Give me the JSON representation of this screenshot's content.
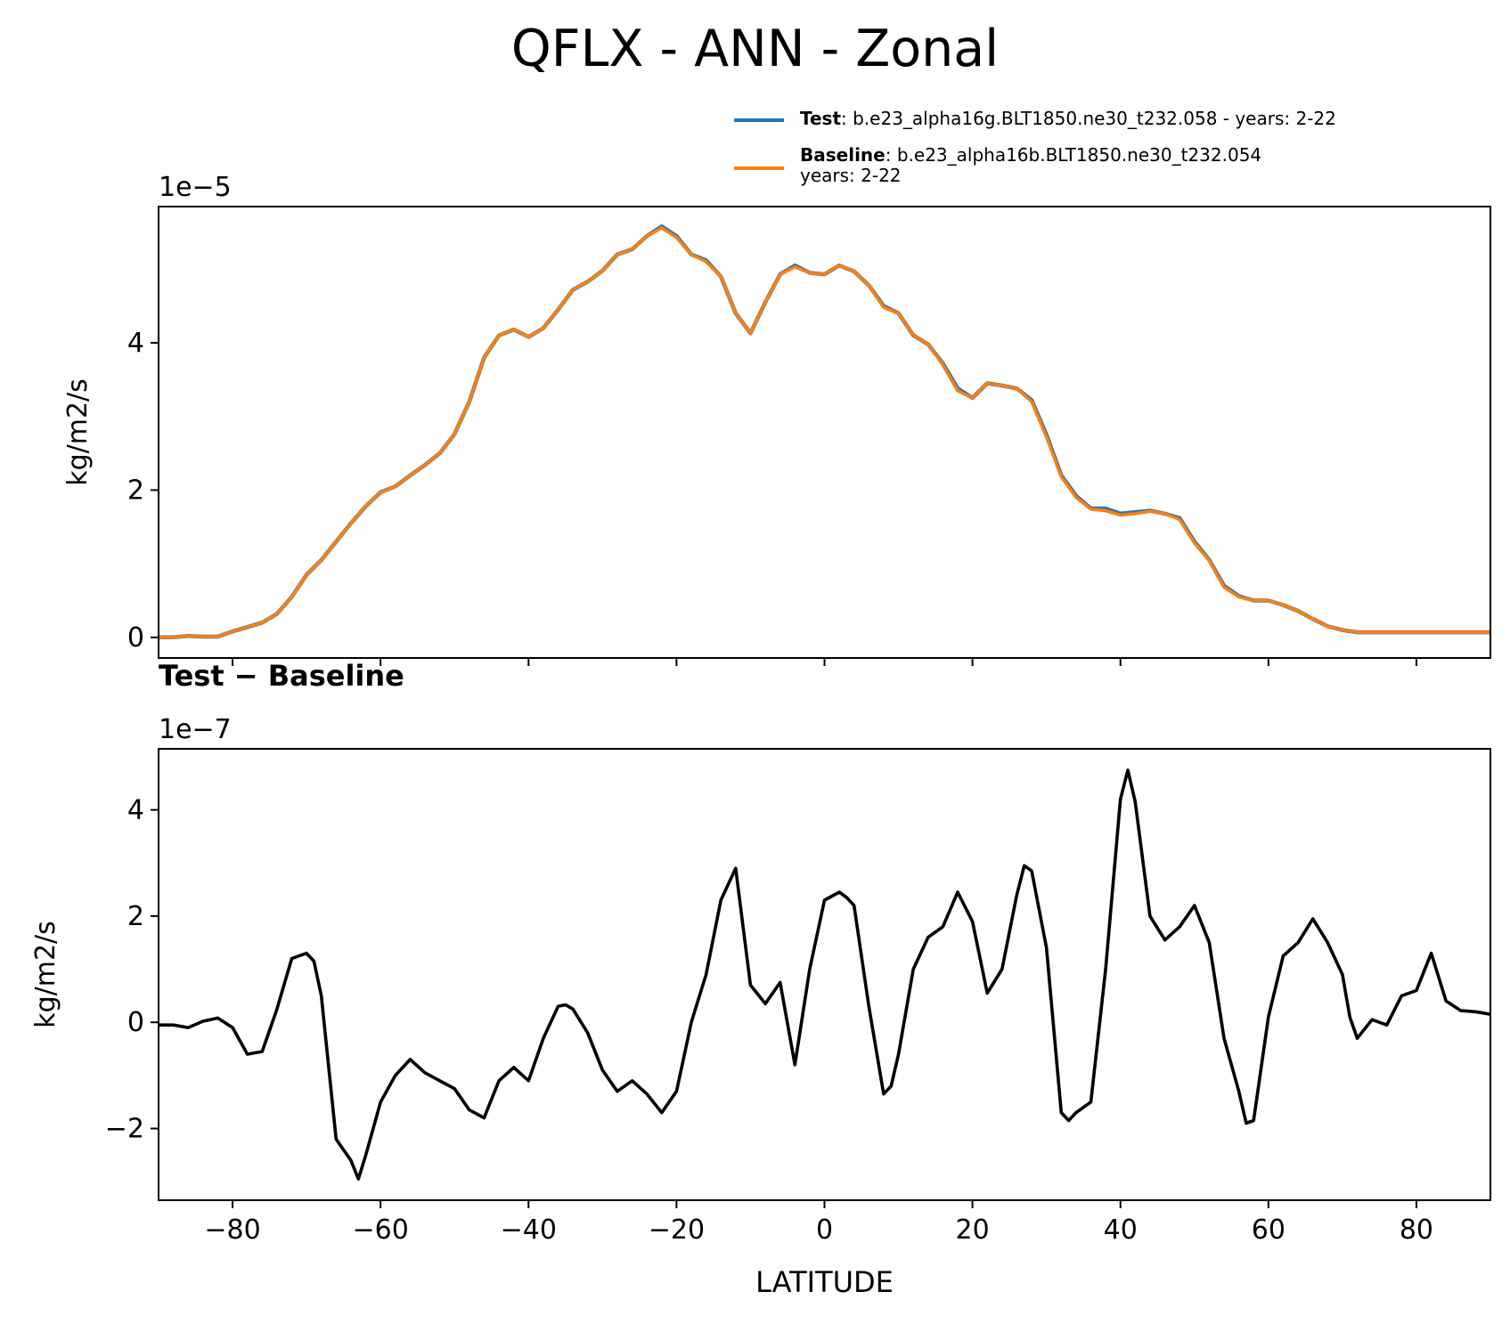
{
  "title": "QFLX - ANN - Zonal",
  "colors": {
    "test": "#1f77b4",
    "baseline": "#ff7f0e",
    "difference": "#000000",
    "axes": "#000000"
  },
  "legend": {
    "test_label": "Test",
    "test_desc": ": b.e23_alpha16g.BLT1850.ne30_t232.058 - years: 2-22",
    "baseline_label": "Baseline",
    "baseline_desc_line1": ": b.e23_alpha16b.BLT1850.ne30_t232.054",
    "baseline_desc_line2": "years: 2-22"
  },
  "chart_data": [
    {
      "type": "line",
      "panel": "top",
      "title": "",
      "xlabel": "",
      "ylabel": "kg/m2/s",
      "offset_text": "1e−5",
      "xlim": [
        -90,
        90
      ],
      "ylim": [
        -0.28,
        5.85
      ],
      "yticks": [
        0,
        2,
        4
      ],
      "ytick_labels": [
        "0",
        "2",
        "4"
      ],
      "xticks": [
        -80,
        -60,
        -40,
        -20,
        0,
        20,
        40,
        60,
        80
      ],
      "x": [
        -90,
        -88,
        -86,
        -84,
        -82,
        -80,
        -78,
        -76,
        -74,
        -72,
        -70,
        -68,
        -66,
        -64,
        -62,
        -60,
        -58,
        -56,
        -54,
        -52,
        -50,
        -48,
        -46,
        -44,
        -42,
        -40,
        -38,
        -36,
        -34,
        -32,
        -30,
        -28,
        -26,
        -24,
        -22,
        -20,
        -18,
        -16,
        -14,
        -12,
        -10,
        -8,
        -6,
        -4,
        -2,
        0,
        2,
        4,
        6,
        8,
        10,
        12,
        14,
        16,
        18,
        20,
        22,
        24,
        26,
        28,
        30,
        32,
        34,
        36,
        38,
        40,
        42,
        44,
        46,
        48,
        50,
        52,
        54,
        56,
        58,
        60,
        62,
        64,
        66,
        68,
        70,
        72,
        74,
        76,
        78,
        80,
        82,
        84,
        86,
        88,
        90
      ],
      "series": [
        {
          "name": "Test",
          "values": [
            0,
            0,
            0.02,
            0.01,
            0.01,
            0.08,
            0.14,
            0.2,
            0.32,
            0.55,
            0.85,
            1.05,
            1.3,
            1.55,
            1.78,
            1.97,
            2.05,
            2.2,
            2.34,
            2.5,
            2.76,
            3.2,
            3.8,
            4.1,
            4.18,
            4.08,
            4.2,
            4.45,
            4.72,
            4.83,
            4.98,
            5.2,
            5.27,
            5.45,
            5.58,
            5.45,
            5.2,
            5.12,
            4.9,
            4.4,
            4.13,
            4.55,
            4.93,
            5.05,
            4.95,
            4.93,
            5.05,
            4.97,
            4.78,
            4.5,
            4.4,
            4.1,
            3.98,
            3.72,
            3.38,
            3.25,
            3.45,
            3.42,
            3.38,
            3.22,
            2.75,
            2.2,
            1.92,
            1.75,
            1.75,
            1.68,
            1.7,
            1.72,
            1.68,
            1.62,
            1.3,
            1.05,
            0.7,
            0.56,
            0.5,
            0.5,
            0.44,
            0.36,
            0.25,
            0.15,
            0.1,
            0.07,
            0.07,
            0.07,
            0.07,
            0.07,
            0.07,
            0.07,
            0.07,
            0.07,
            0.07
          ]
        },
        {
          "name": "Baseline",
          "values": [
            0,
            0,
            0.02,
            0.01,
            0.01,
            0.08,
            0.14,
            0.2,
            0.32,
            0.55,
            0.85,
            1.05,
            1.3,
            1.55,
            1.78,
            1.97,
            2.05,
            2.2,
            2.34,
            2.5,
            2.76,
            3.2,
            3.8,
            4.1,
            4.18,
            4.08,
            4.2,
            4.45,
            4.72,
            4.83,
            4.98,
            5.2,
            5.27,
            5.45,
            5.56,
            5.43,
            5.2,
            5.1,
            4.9,
            4.4,
            4.13,
            4.55,
            4.93,
            5.03,
            4.95,
            4.93,
            5.05,
            4.97,
            4.78,
            4.48,
            4.4,
            4.1,
            3.98,
            3.7,
            3.35,
            3.25,
            3.45,
            3.42,
            3.38,
            3.2,
            2.72,
            2.18,
            1.9,
            1.74,
            1.72,
            1.66,
            1.68,
            1.71,
            1.68,
            1.6,
            1.28,
            1.04,
            0.68,
            0.55,
            0.5,
            0.5,
            0.44,
            0.36,
            0.25,
            0.15,
            0.1,
            0.07,
            0.07,
            0.07,
            0.07,
            0.07,
            0.07,
            0.07,
            0.07,
            0.07,
            0.07
          ]
        }
      ]
    },
    {
      "type": "line",
      "panel": "bottom",
      "title": "Test − Baseline",
      "xlabel": "LATITUDE",
      "ylabel": "kg/m2/s",
      "offset_text": "1e−7",
      "xlim": [
        -90,
        90
      ],
      "ylim": [
        -3.35,
        5.15
      ],
      "yticks": [
        -2,
        0,
        2,
        4
      ],
      "ytick_labels": [
        "−2",
        "0",
        "2",
        "4"
      ],
      "xticks": [
        -80,
        -60,
        -40,
        -20,
        0,
        20,
        40,
        60,
        80
      ],
      "xtick_labels": [
        "−80",
        "−60",
        "−40",
        "−20",
        "0",
        "20",
        "40",
        "60",
        "80"
      ],
      "x": [
        -90,
        -88,
        -86,
        -84,
        -82,
        -80,
        -78,
        -76,
        -74,
        -72,
        -70,
        -69,
        -68,
        -66,
        -64,
        -63,
        -62,
        -60,
        -58,
        -56,
        -54,
        -52,
        -50,
        -48,
        -46,
        -44,
        -42,
        -40,
        -38,
        -36,
        -35,
        -34,
        -32,
        -30,
        -28,
        -26,
        -24,
        -22,
        -20,
        -18,
        -16,
        -14,
        -12,
        -10,
        -8,
        -6,
        -4,
        -2,
        0,
        2,
        3,
        4,
        6,
        8,
        9,
        10,
        12,
        14,
        16,
        18,
        20,
        22,
        24,
        26,
        27,
        28,
        30,
        32,
        33,
        34,
        36,
        38,
        40,
        41,
        42,
        44,
        46,
        48,
        50,
        52,
        54,
        56,
        57,
        58,
        60,
        62,
        64,
        66,
        68,
        70,
        71,
        72,
        74,
        76,
        78,
        80,
        82,
        84,
        86,
        88,
        90
      ],
      "series": [
        {
          "name": "Test − Baseline",
          "values": [
            -0.05,
            -0.05,
            -0.1,
            0.02,
            0.08,
            -0.1,
            -0.6,
            -0.55,
            0.25,
            1.2,
            1.3,
            1.15,
            0.5,
            -2.2,
            -2.6,
            -2.95,
            -2.5,
            -1.5,
            -1.0,
            -0.7,
            -0.95,
            -1.1,
            -1.25,
            -1.65,
            -1.8,
            -1.1,
            -0.85,
            -1.1,
            -0.3,
            0.3,
            0.33,
            0.25,
            -0.2,
            -0.9,
            -1.3,
            -1.1,
            -1.35,
            -1.7,
            -1.3,
            0.0,
            0.9,
            2.3,
            2.9,
            0.7,
            0.35,
            0.75,
            -0.8,
            1.0,
            2.3,
            2.45,
            2.35,
            2.2,
            0.3,
            -1.35,
            -1.2,
            -0.6,
            1.0,
            1.6,
            1.8,
            2.45,
            1.9,
            0.55,
            1.0,
            2.4,
            2.95,
            2.85,
            1.4,
            -1.7,
            -1.85,
            -1.7,
            -1.5,
            1.0,
            4.2,
            4.75,
            4.15,
            2.0,
            1.55,
            1.8,
            2.2,
            1.5,
            -0.3,
            -1.3,
            -1.9,
            -1.85,
            0.1,
            1.25,
            1.5,
            1.95,
            1.5,
            0.9,
            0.1,
            -0.3,
            0.05,
            -0.05,
            0.5,
            0.6,
            1.3,
            0.4,
            0.22,
            0.2,
            0.15
          ]
        }
      ]
    }
  ]
}
